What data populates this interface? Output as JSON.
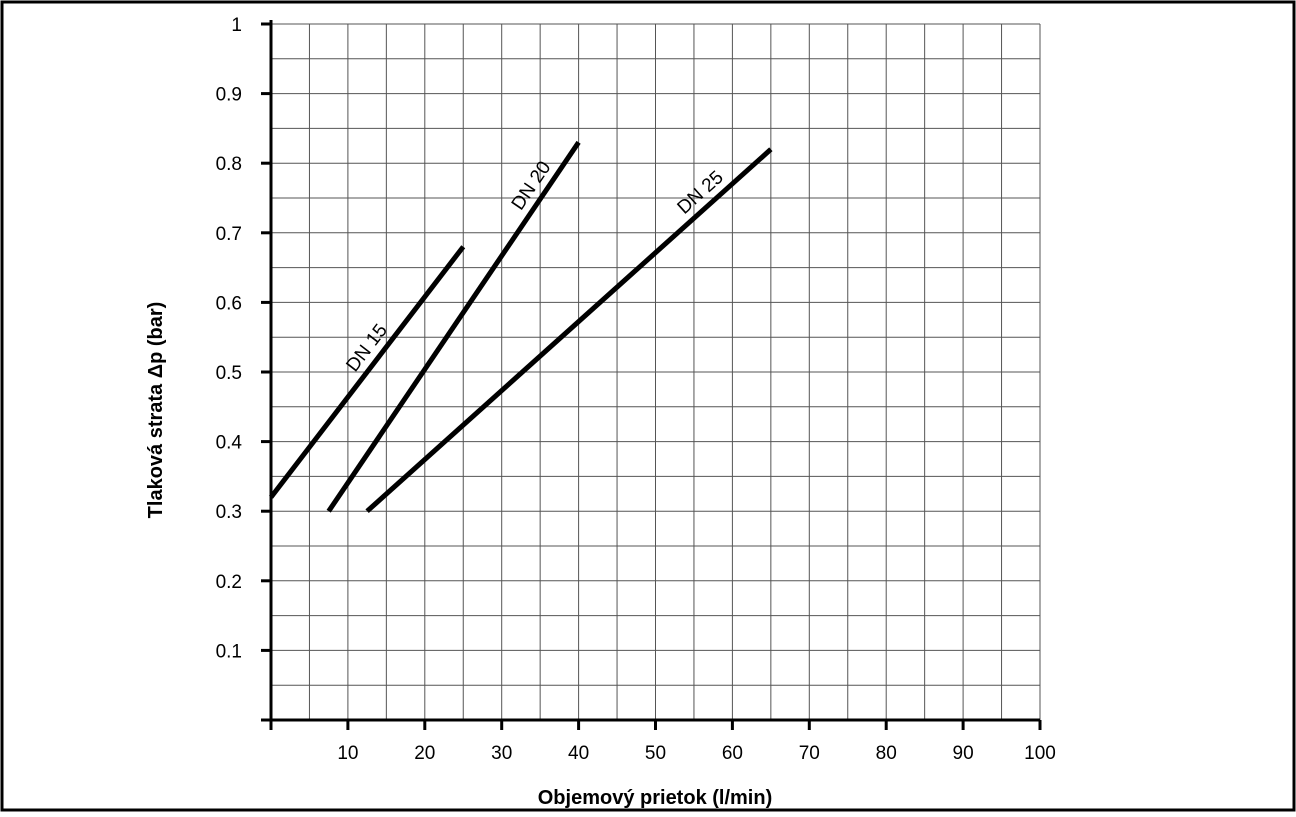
{
  "chart_data": {
    "type": "line",
    "title": "",
    "xlabel": "Objemový prietok (l/min)",
    "ylabel": "Tlaková strata Δp (bar)",
    "xlim": [
      0,
      100
    ],
    "ylim": [
      0,
      1
    ],
    "x_ticks": [
      10,
      20,
      30,
      40,
      50,
      60,
      70,
      80,
      90,
      100
    ],
    "y_ticks": [
      0.1,
      0.2,
      0.3,
      0.4,
      0.5,
      0.6,
      0.7,
      0.8,
      0.9,
      1
    ],
    "grid": true,
    "legend": "none",
    "series": [
      {
        "name": "DN 15",
        "x": [
          0,
          25
        ],
        "y": [
          0.32,
          0.68
        ]
      },
      {
        "name": "DN 20",
        "x": [
          7.5,
          40
        ],
        "y": [
          0.3,
          0.83
        ]
      },
      {
        "name": "DN 25",
        "x": [
          12.5,
          65
        ],
        "y": [
          0.3,
          0.82
        ]
      }
    ]
  }
}
